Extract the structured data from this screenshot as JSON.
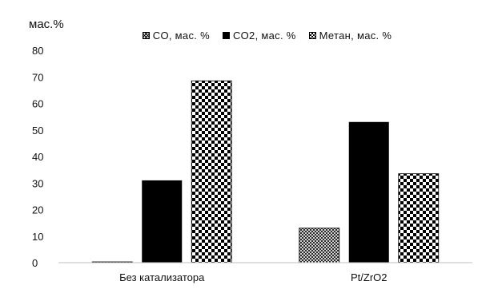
{
  "chart_data": {
    "type": "bar",
    "categories": [
      "Без катализатора",
      "Pt/ZrO2"
    ],
    "series": [
      {
        "name": "CO, мас. %",
        "values": [
          0.3,
          13
        ],
        "pattern": "crosshatch"
      },
      {
        "name": "CO2, мас. %",
        "values": [
          31,
          53
        ],
        "pattern": "solid"
      },
      {
        "name": "Метан, мас. %",
        "values": [
          68.5,
          33.5
        ],
        "pattern": "checker"
      }
    ],
    "title": "",
    "xlabel": "",
    "ylabel": "мас.%",
    "ylim": [
      0,
      80
    ],
    "yticks": [
      "0",
      "10",
      "20",
      "30",
      "40",
      "50",
      "60",
      "70",
      "80"
    ],
    "grid": false,
    "legend_position": "top",
    "colors": {
      "fill": "#000000",
      "background": "#ffffff"
    }
  }
}
